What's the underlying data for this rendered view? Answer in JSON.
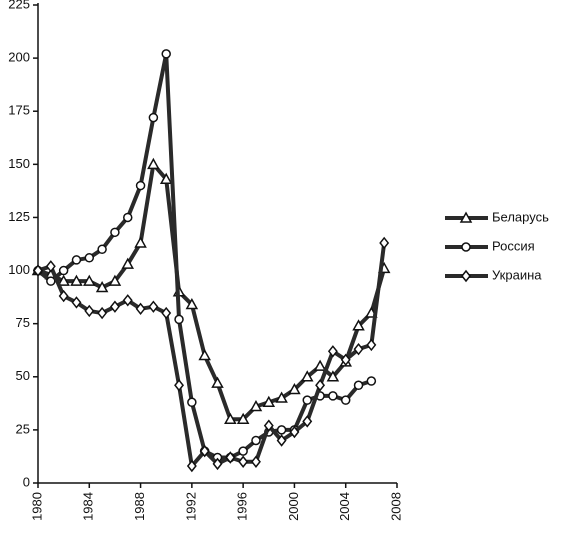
{
  "chart_data": {
    "type": "line",
    "x": [
      1980,
      1981,
      1982,
      1983,
      1984,
      1985,
      1986,
      1987,
      1988,
      1989,
      1990,
      1991,
      1992,
      1993,
      1994,
      1995,
      1996,
      1997,
      1998,
      1999,
      2000,
      2001,
      2002,
      2003,
      2004,
      2005,
      2006,
      2007
    ],
    "series": [
      {
        "name": "Беларусь",
        "color": "#2a2a2a",
        "marker": "triangle",
        "values": [
          100,
          98,
          95,
          95,
          95,
          92,
          95,
          103,
          113,
          150,
          143,
          90,
          84,
          60,
          47,
          30,
          30,
          36,
          38,
          40,
          44,
          50,
          55,
          50,
          57,
          74,
          80,
          101
        ]
      },
      {
        "name": "Россия",
        "color": "#2a2a2a",
        "marker": "circle",
        "values": [
          100,
          95,
          100,
          105,
          106,
          110,
          118,
          125,
          140,
          172,
          202,
          77,
          38,
          15,
          12,
          12,
          15,
          20,
          24,
          25,
          25,
          39,
          41,
          41,
          39,
          46,
          48,
          null
        ]
      },
      {
        "name": "Украина",
        "color": "#2a2a2a",
        "marker": "diamond",
        "values": [
          100,
          102,
          88,
          85,
          81,
          80,
          83,
          86,
          82,
          83,
          80,
          46,
          8,
          15,
          9,
          12,
          10,
          10,
          27,
          20,
          24,
          29,
          46,
          62,
          58,
          63,
          65,
          113
        ]
      }
    ],
    "xlim": [
      1980,
      2008
    ],
    "xticks": [
      1980,
      1984,
      1988,
      1992,
      1996,
      2000,
      2004,
      2008
    ],
    "ylim": [
      0,
      225
    ],
    "yticks": [
      0,
      25,
      50,
      75,
      100,
      125,
      150,
      175,
      200,
      225
    ],
    "grid": false,
    "legend": "right"
  }
}
